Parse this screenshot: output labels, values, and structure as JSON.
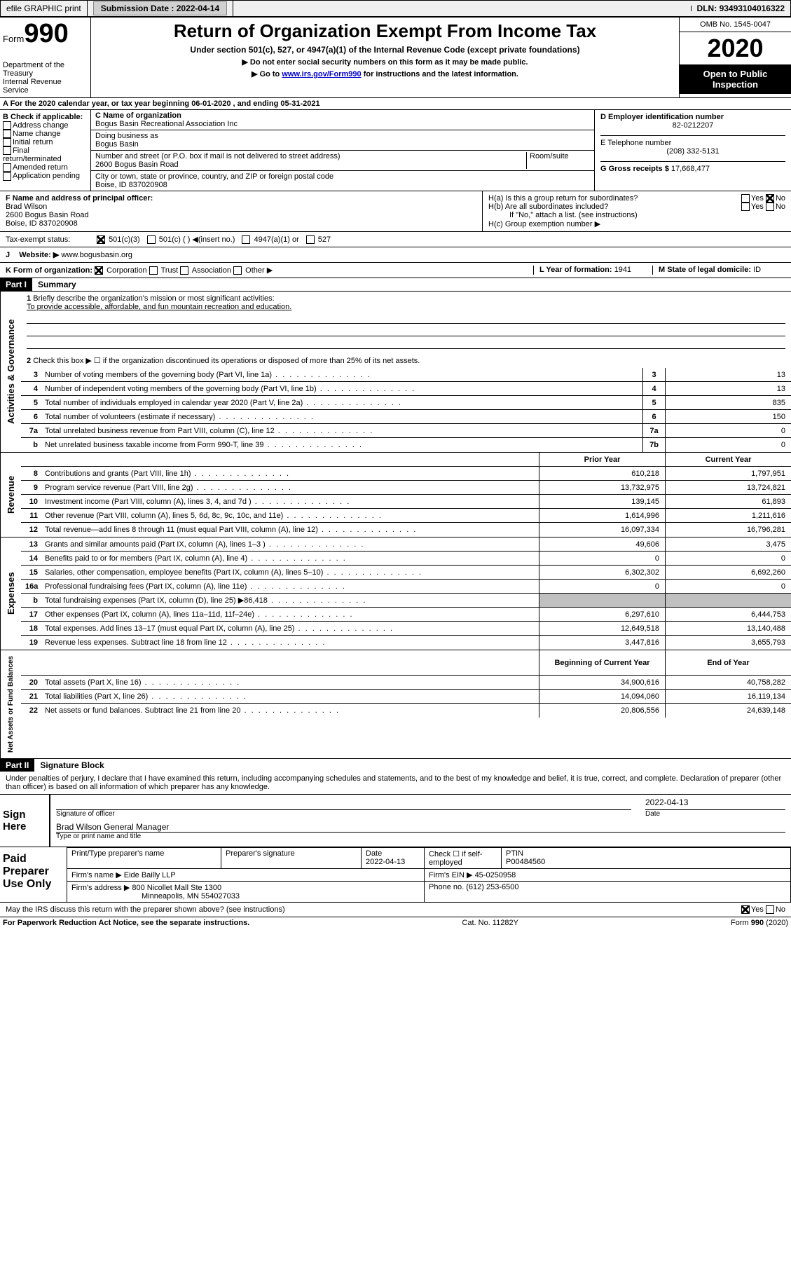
{
  "topbar": {
    "efile": "efile GRAPHIC print",
    "submission_label": "Submission Date :",
    "submission_date": "2022-04-14",
    "dln_label": "DLN:",
    "dln": "93493104016322"
  },
  "header": {
    "form_label": "Form",
    "form_num": "990",
    "dept": "Department of the Treasury\nInternal Revenue Service",
    "title": "Return of Organization Exempt From Income Tax",
    "subtitle": "Under section 501(c), 527, or 4947(a)(1) of the Internal Revenue Code (except private foundations)",
    "instr1": "▶ Do not enter social security numbers on this form as it may be made public.",
    "instr2_prefix": "▶ Go to ",
    "instr2_link": "www.irs.gov/Form990",
    "instr2_suffix": " for instructions and the latest information.",
    "omb": "OMB No. 1545-0047",
    "year": "2020",
    "public": "Open to Public Inspection"
  },
  "line_a": "A For the 2020 calendar year, or tax year beginning 06-01-2020   , and ending 05-31-2021",
  "section_b": {
    "b_label": "B Check if applicable:",
    "b_items": [
      "Address change",
      "Name change",
      "Initial return",
      "Final return/terminated",
      "Amended return",
      "Application pending"
    ],
    "c_name_label": "C Name of organization",
    "c_name": "Bogus Basin Recreational Association Inc",
    "c_dba_label": "Doing business as",
    "c_dba": "Bogus Basin",
    "c_addr_label": "Number and street (or P.O. box if mail is not delivered to street address)",
    "c_room_label": "Room/suite",
    "c_addr": "2600 Bogus Basin Road",
    "c_city_label": "City or town, state or province, country, and ZIP or foreign postal code",
    "c_city": "Boise, ID  837020908",
    "d_label": "D Employer identification number",
    "d_val": "82-0212207",
    "e_label": "E Telephone number",
    "e_val": "(208) 332-5131",
    "g_label": "G Gross receipts $",
    "g_val": "17,668,477"
  },
  "section_f": {
    "f_label": "F  Name and address of principal officer:",
    "f_name": "Brad Wilson",
    "f_addr1": "2600 Bogus Basin Road",
    "f_addr2": "Boise, ID  837020908",
    "ha_label": "H(a)  Is this a group return for subordinates?",
    "hb_label": "H(b)  Are all subordinates included?",
    "hb_note": "If \"No,\" attach a list. (see instructions)",
    "hc_label": "H(c)  Group exemption number ▶"
  },
  "tax_status": {
    "label": "Tax-exempt status:",
    "opt1": "501(c)(3)",
    "opt2": "501(c) (   ) ◀(insert no.)",
    "opt3": "4947(a)(1) or",
    "opt4": "527"
  },
  "row_j": {
    "label": "J",
    "website_label": "Website: ▶",
    "website": "www.bogusbasin.org"
  },
  "row_k": {
    "k_label": "K Form of organization:",
    "opts": [
      "Corporation",
      "Trust",
      "Association",
      "Other ▶"
    ],
    "l_label": "L Year of formation:",
    "l_val": "1941",
    "m_label": "M State of legal domicile:",
    "m_val": "ID"
  },
  "part1": {
    "header": "Part I",
    "title": "Summary",
    "q1_label": "1",
    "q1_text": "Briefly describe the organization's mission or most significant activities:",
    "q1_mission": "To provide accessible, affordable, and fun mountain recreation and education.",
    "q2_label": "2",
    "q2_text": "Check this box ▶ ☐  if the organization discontinued its operations or disposed of more than 25% of its net assets.",
    "vert_gov": "Activities & Governance",
    "vert_rev": "Revenue",
    "vert_exp": "Expenses",
    "vert_net": "Net Assets or Fund Balances",
    "rows_gov": [
      {
        "n": "3",
        "t": "Number of voting members of the governing body (Part VI, line 1a)",
        "c": "3",
        "v": "13"
      },
      {
        "n": "4",
        "t": "Number of independent voting members of the governing body (Part VI, line 1b)",
        "c": "4",
        "v": "13"
      },
      {
        "n": "5",
        "t": "Total number of individuals employed in calendar year 2020 (Part V, line 2a)",
        "c": "5",
        "v": "835"
      },
      {
        "n": "6",
        "t": "Total number of volunteers (estimate if necessary)",
        "c": "6",
        "v": "150"
      },
      {
        "n": "7a",
        "t": "Total unrelated business revenue from Part VIII, column (C), line 12",
        "c": "7a",
        "v": "0"
      },
      {
        "n": "b",
        "t": "Net unrelated business taxable income from Form 990-T, line 39",
        "c": "7b",
        "v": "0"
      }
    ],
    "col_headers": {
      "prior": "Prior Year",
      "current": "Current Year"
    },
    "rows_rev": [
      {
        "n": "8",
        "t": "Contributions and grants (Part VIII, line 1h)",
        "p": "610,218",
        "c": "1,797,951"
      },
      {
        "n": "9",
        "t": "Program service revenue (Part VIII, line 2g)",
        "p": "13,732,975",
        "c": "13,724,821"
      },
      {
        "n": "10",
        "t": "Investment income (Part VIII, column (A), lines 3, 4, and 7d )",
        "p": "139,145",
        "c": "61,893"
      },
      {
        "n": "11",
        "t": "Other revenue (Part VIII, column (A), lines 5, 6d, 8c, 9c, 10c, and 11e)",
        "p": "1,614,996",
        "c": "1,211,616"
      },
      {
        "n": "12",
        "t": "Total revenue—add lines 8 through 11 (must equal Part VIII, column (A), line 12)",
        "p": "16,097,334",
        "c": "16,796,281"
      }
    ],
    "rows_exp": [
      {
        "n": "13",
        "t": "Grants and similar amounts paid (Part IX, column (A), lines 1–3 )",
        "p": "49,606",
        "c": "3,475"
      },
      {
        "n": "14",
        "t": "Benefits paid to or for members (Part IX, column (A), line 4)",
        "p": "0",
        "c": "0"
      },
      {
        "n": "15",
        "t": "Salaries, other compensation, employee benefits (Part IX, column (A), lines 5–10)",
        "p": "6,302,302",
        "c": "6,692,260"
      },
      {
        "n": "16a",
        "t": "Professional fundraising fees (Part IX, column (A), line 11e)",
        "p": "0",
        "c": "0"
      },
      {
        "n": "b",
        "t": "Total fundraising expenses (Part IX, column (D), line 25) ▶86,418",
        "p": "",
        "c": "",
        "gray": true
      },
      {
        "n": "17",
        "t": "Other expenses (Part IX, column (A), lines 11a–11d, 11f–24e)",
        "p": "6,297,610",
        "c": "6,444,753"
      },
      {
        "n": "18",
        "t": "Total expenses. Add lines 13–17 (must equal Part IX, column (A), line 25)",
        "p": "12,649,518",
        "c": "13,140,488"
      },
      {
        "n": "19",
        "t": "Revenue less expenses. Subtract line 18 from line 12",
        "p": "3,447,816",
        "c": "3,655,793"
      }
    ],
    "net_headers": {
      "begin": "Beginning of Current Year",
      "end": "End of Year"
    },
    "rows_net": [
      {
        "n": "20",
        "t": "Total assets (Part X, line 16)",
        "p": "34,900,616",
        "c": "40,758,282"
      },
      {
        "n": "21",
        "t": "Total liabilities (Part X, line 26)",
        "p": "14,094,060",
        "c": "16,119,134"
      },
      {
        "n": "22",
        "t": "Net assets or fund balances. Subtract line 21 from line 20",
        "p": "20,806,556",
        "c": "24,639,148"
      }
    ]
  },
  "part2": {
    "header": "Part II",
    "title": "Signature Block",
    "declaration": "Under penalties of perjury, I declare that I have examined this return, including accompanying schedules and statements, and to the best of my knowledge and belief, it is true, correct, and complete. Declaration of preparer (other than officer) is based on all information of which preparer has any knowledge.",
    "sign_here": "Sign Here",
    "sig_officer": "Signature of officer",
    "sig_date_label": "Date",
    "sig_date": "2022-04-13",
    "sig_name": "Brad Wilson  General Manager",
    "sig_name_label": "Type or print name and title",
    "paid_label": "Paid Preparer Use Only",
    "prep_name_label": "Print/Type preparer's name",
    "prep_sig_label": "Preparer's signature",
    "prep_date_label": "Date",
    "prep_date": "2022-04-13",
    "prep_check_label": "Check ☐ if self-employed",
    "ptin_label": "PTIN",
    "ptin": "P00484560",
    "firm_name_label": "Firm's name    ▶",
    "firm_name": "Eide Bailly LLP",
    "firm_ein_label": "Firm's EIN ▶",
    "firm_ein": "45-0250958",
    "firm_addr_label": "Firm's address ▶",
    "firm_addr1": "800 Nicollet Mall Ste 1300",
    "firm_addr2": "Minneapolis, MN  554027033",
    "phone_label": "Phone no.",
    "phone": "(612) 253-6500",
    "discuss": "May the IRS discuss this return with the preparer shown above? (see instructions)",
    "yes": "Yes",
    "no": "No"
  },
  "footer": {
    "paperwork": "For Paperwork Reduction Act Notice, see the separate instructions.",
    "cat": "Cat. No. 11282Y",
    "form": "Form 990 (2020)"
  }
}
